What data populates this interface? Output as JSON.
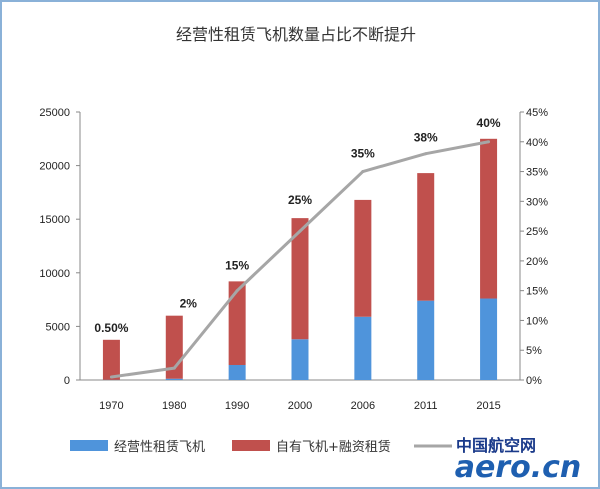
{
  "chart_data": {
    "type": "bar",
    "title": "经营性租赁飞机数量占比不断提升",
    "categories": [
      "1970",
      "1980",
      "1990",
      "2000",
      "2006",
      "2011",
      "2015"
    ],
    "series": [
      {
        "name": "经营性租赁飞机",
        "type": "bar",
        "axis": "left",
        "color": "#4f94db",
        "values": [
          20,
          120,
          1400,
          3800,
          5900,
          7400,
          7600
        ]
      },
      {
        "name": "自有飞机+融资租赁",
        "type": "bar",
        "axis": "left",
        "color": "#c0504d",
        "values": [
          3730,
          5880,
          7800,
          11300,
          10900,
          11900,
          14900
        ]
      },
      {
        "name": "",
        "type": "line",
        "axis": "right",
        "color": "#a6a6a6",
        "values": [
          0.5,
          2,
          15,
          25,
          35,
          38,
          40
        ]
      }
    ],
    "data_labels": [
      "0.50%",
      "2%",
      "15%",
      "25%",
      "35%",
      "38%",
      "40%"
    ],
    "ylim_left": [
      0,
      25000
    ],
    "yticks_left": [
      "0",
      "5000",
      "10000",
      "15000",
      "20000",
      "25000"
    ],
    "ylim_right": [
      0,
      45
    ],
    "yticks_right": [
      "0%",
      "5%",
      "10%",
      "15%",
      "20%",
      "25%",
      "30%",
      "35%",
      "40%",
      "45%"
    ],
    "grid": false,
    "legend": "bottom"
  },
  "watermark": {
    "cn": "中国航空网",
    "en": "aero.cn"
  }
}
